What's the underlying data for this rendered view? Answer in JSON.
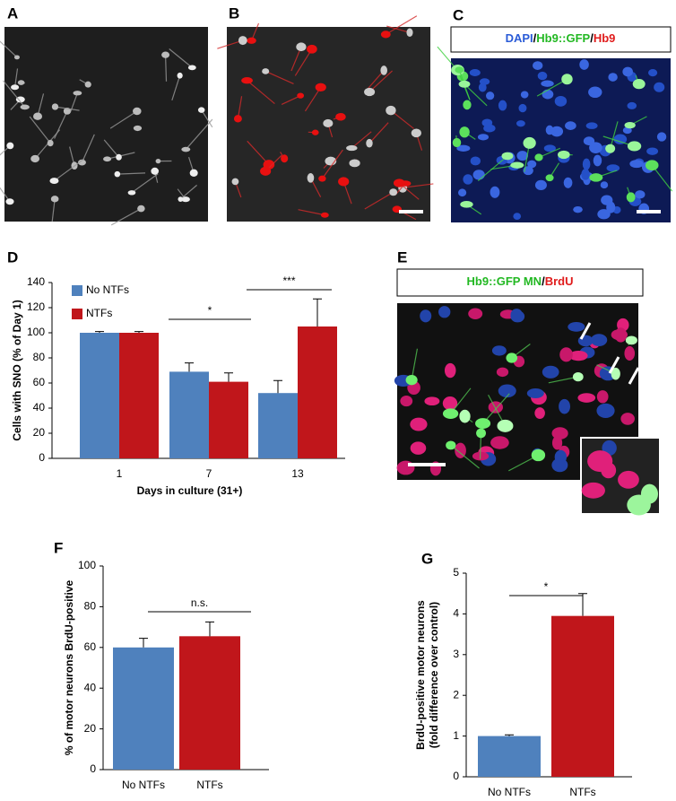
{
  "panel_labels": [
    "A",
    "B",
    "C",
    "D",
    "E",
    "F",
    "G"
  ],
  "captions": {
    "C": [
      {
        "text": "DAPI",
        "color": "#2a5bd7"
      },
      {
        "text": "/",
        "color": "#000000"
      },
      {
        "text": "Hb9::GFP",
        "color": "#22b822"
      },
      {
        "text": "/",
        "color": "#000000"
      },
      {
        "text": "Hb9",
        "color": "#e01b1b"
      }
    ],
    "E": [
      {
        "text": "Hb9::GFP MN",
        "color": "#22b822"
      },
      {
        "text": "/",
        "color": "#000000"
      },
      {
        "text": "BrdU",
        "color": "#e01b1b"
      }
    ]
  },
  "chart_data": [
    {
      "type": "grouped-bar",
      "categories": [
        "1",
        "7",
        "13"
      ],
      "series": [
        {
          "name": "No NTFs",
          "color": "#4f81bd",
          "values": [
            100,
            69,
            52
          ],
          "errors": [
            1,
            7,
            10
          ]
        },
        {
          "name": "NTFs",
          "color": "#c0161b",
          "values": [
            100,
            61,
            105
          ],
          "errors": [
            1,
            7,
            22
          ]
        }
      ],
      "ylim": [
        0,
        140
      ],
      "yticks": [
        0,
        20,
        40,
        60,
        80,
        100,
        120,
        140
      ],
      "xlabel": "Days in culture (31+)",
      "ylabel": [
        "Cells with SNO (% of Day 1)"
      ],
      "annotations": [
        "*",
        "***"
      ],
      "legend": "top-left"
    },
    {
      "type": "bar",
      "categories": [
        "No NTFs",
        "NTFs"
      ],
      "values": [
        60,
        65.5
      ],
      "errors": [
        4.5,
        7
      ],
      "colors": [
        "#4f81bd",
        "#c0161b"
      ],
      "ylim": [
        0,
        100
      ],
      "yticks": [
        0,
        20,
        40,
        60,
        80,
        100
      ],
      "ylabel": [
        "% of motor neurons BrdU-positive"
      ],
      "annotations": [
        "n.s."
      ]
    },
    {
      "type": "bar",
      "categories": [
        "No NTFs",
        "NTFs"
      ],
      "values": [
        1,
        3.95
      ],
      "errors": [
        0.03,
        0.55
      ],
      "colors": [
        "#4f81bd",
        "#c0161b"
      ],
      "ylim": [
        0,
        5
      ],
      "yticks": [
        0,
        1,
        2,
        3,
        4,
        5
      ],
      "ylabel": [
        "BrdU-positive motor neurons",
        "(fold difference over control)"
      ],
      "annotations": [
        "*"
      ]
    }
  ]
}
